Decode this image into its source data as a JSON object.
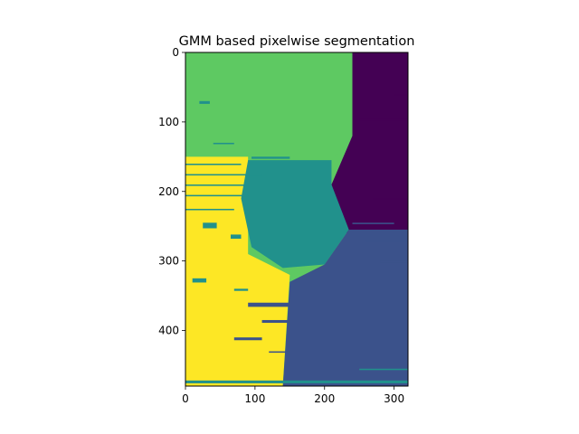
{
  "chart_data": {
    "type": "heatmap",
    "title": "GMM based pixelwise segmentation",
    "xlabel": "",
    "ylabel": "",
    "xlim": [
      0,
      320
    ],
    "ylim": [
      480,
      0
    ],
    "x_ticks": [
      0,
      100,
      200,
      300
    ],
    "y_ticks": [
      0,
      100,
      200,
      300,
      400
    ],
    "x_tick_labels": [
      "0",
      "100",
      "200",
      "300"
    ],
    "y_tick_labels": [
      "0",
      "100",
      "200",
      "300",
      "400"
    ],
    "colormap": "viridis",
    "grid": false,
    "legend": "none",
    "colors": {
      "cluster_0": "#440154",
      "cluster_1": "#3b528b",
      "cluster_2": "#21918c",
      "cluster_3": "#5ec962",
      "cluster_4": "#fde725"
    },
    "regions": [
      {
        "cluster": "cluster_3",
        "description_points": [
          [
            0,
            0
          ],
          [
            240,
            0
          ],
          [
            240,
            120
          ],
          [
            210,
            155
          ],
          [
            0,
            150
          ]
        ]
      },
      {
        "cluster": "cluster_0",
        "description_points": [
          [
            240,
            0
          ],
          [
            320,
            0
          ],
          [
            320,
            260
          ],
          [
            230,
            260
          ],
          [
            210,
            190
          ],
          [
            240,
            120
          ]
        ]
      },
      {
        "cluster": "cluster_4",
        "description_points": [
          [
            0,
            150
          ],
          [
            90,
            150
          ],
          [
            90,
            290
          ],
          [
            150,
            320
          ],
          [
            140,
            480
          ],
          [
            0,
            480
          ]
        ]
      },
      {
        "cluster": "cluster_2",
        "description_points": [
          [
            90,
            155
          ],
          [
            210,
            155
          ],
          [
            210,
            190
          ],
          [
            235,
            255
          ],
          [
            200,
            305
          ],
          [
            140,
            310
          ],
          [
            95,
            280
          ],
          [
            80,
            210
          ]
        ]
      },
      {
        "cluster": "cluster_1",
        "description_points": [
          [
            235,
            255
          ],
          [
            320,
            255
          ],
          [
            320,
            480
          ],
          [
            140,
            480
          ],
          [
            150,
            330
          ],
          [
            200,
            305
          ]
        ]
      }
    ]
  }
}
